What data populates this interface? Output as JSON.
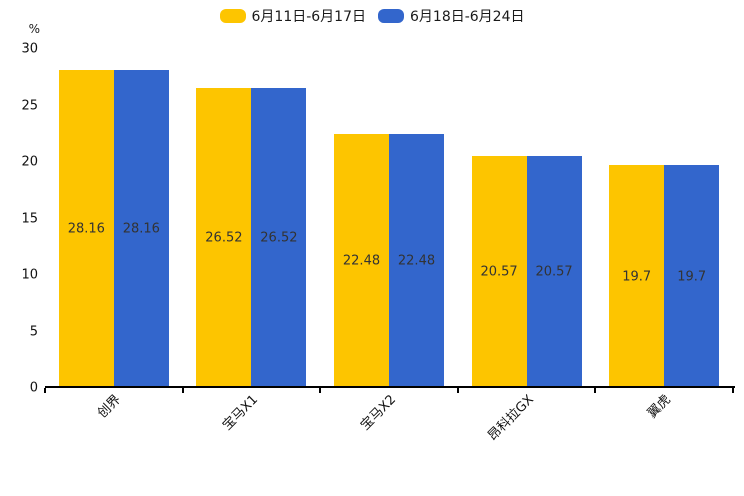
{
  "chart_data": {
    "type": "bar",
    "title": "",
    "categories": [
      "创界",
      "宝马X1",
      "宝马X2",
      "昂科拉GX",
      "翼虎"
    ],
    "series": [
      {
        "name": "6月11日-6月17日",
        "color": "#FDC500",
        "values": [
          28.16,
          26.52,
          22.48,
          20.57,
          19.7
        ]
      },
      {
        "name": "6月18日-6月24日",
        "color": "#3366CC",
        "values": [
          28.16,
          26.52,
          22.48,
          20.57,
          19.7
        ]
      }
    ],
    "xlabel": "",
    "ylabel": "%",
    "ylim": [
      0,
      30
    ],
    "yticks": [
      0,
      5,
      10,
      15,
      20,
      25,
      30
    ],
    "grid": false,
    "legend_position": "top",
    "value_labels_inside_bars": true,
    "value_label_color": "#333333",
    "axis_color": "#000000"
  }
}
